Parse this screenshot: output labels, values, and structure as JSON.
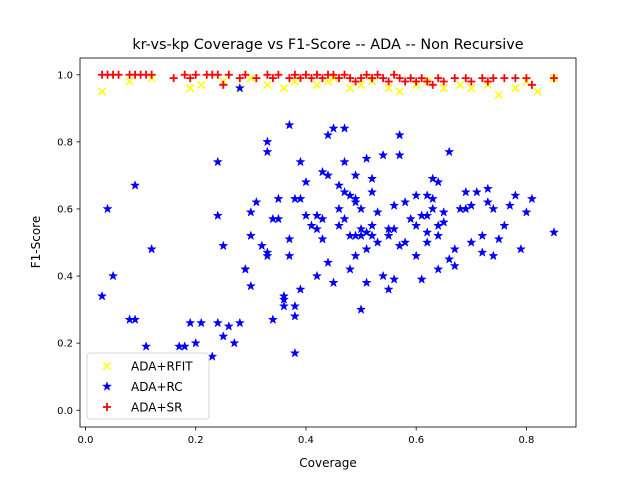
{
  "chart_data": {
    "type": "scatter",
    "title": "kr-vs-kp Coverage vs F1-Score -- ADA -- Non Recursive",
    "xlabel": "Coverage",
    "ylabel": "F1-Score",
    "xlim": [
      -0.01,
      0.89
    ],
    "ylim": [
      -0.05,
      1.05
    ],
    "xticks": [
      "0.0",
      "0.2",
      "0.4",
      "0.6",
      "0.8"
    ],
    "yticks": [
      "0.0",
      "0.2",
      "0.4",
      "0.6",
      "0.8",
      "1.0"
    ],
    "grid": false,
    "legend_position": "lower-left",
    "series": [
      {
        "name": "ADA+RFIT",
        "marker": "x",
        "color": "#ffff00",
        "points": [
          [
            0.03,
            0.95
          ],
          [
            0.08,
            0.98
          ],
          [
            0.12,
            0.99
          ],
          [
            0.19,
            0.96
          ],
          [
            0.21,
            0.97
          ],
          [
            0.25,
            0.98
          ],
          [
            0.3,
            0.99
          ],
          [
            0.33,
            0.97
          ],
          [
            0.36,
            0.96
          ],
          [
            0.38,
            0.98
          ],
          [
            0.42,
            0.97
          ],
          [
            0.45,
            0.99
          ],
          [
            0.48,
            0.96
          ],
          [
            0.5,
            0.97
          ],
          [
            0.52,
            0.98
          ],
          [
            0.55,
            0.96
          ],
          [
            0.57,
            0.95
          ],
          [
            0.6,
            0.97
          ],
          [
            0.62,
            0.98
          ],
          [
            0.65,
            0.96
          ],
          [
            0.68,
            0.97
          ],
          [
            0.7,
            0.96
          ],
          [
            0.73,
            0.97
          ],
          [
            0.75,
            0.94
          ],
          [
            0.78,
            0.96
          ],
          [
            0.8,
            0.98
          ],
          [
            0.82,
            0.95
          ],
          [
            0.85,
            0.99
          ],
          [
            0.28,
            0.96
          ],
          [
            0.44,
            0.98
          ]
        ]
      },
      {
        "name": "ADA+RC",
        "marker": "star",
        "color": "#0000ff",
        "points": [
          [
            0.03,
            0.34
          ],
          [
            0.04,
            0.6
          ],
          [
            0.05,
            0.4
          ],
          [
            0.08,
            0.27
          ],
          [
            0.09,
            0.27
          ],
          [
            0.09,
            0.67
          ],
          [
            0.11,
            0.19
          ],
          [
            0.12,
            0.48
          ],
          [
            0.18,
            0.19
          ],
          [
            0.19,
            0.26
          ],
          [
            0.2,
            0.2
          ],
          [
            0.21,
            0.26
          ],
          [
            0.23,
            0.16
          ],
          [
            0.24,
            0.26
          ],
          [
            0.24,
            0.74
          ],
          [
            0.24,
            0.58
          ],
          [
            0.25,
            0.49
          ],
          [
            0.25,
            0.22
          ],
          [
            0.26,
            0.25
          ],
          [
            0.27,
            0.2
          ],
          [
            0.28,
            0.26
          ],
          [
            0.28,
            0.96
          ],
          [
            0.29,
            0.42
          ],
          [
            0.29,
            0.42
          ],
          [
            0.3,
            0.59
          ],
          [
            0.3,
            0.37
          ],
          [
            0.31,
            0.62
          ],
          [
            0.32,
            0.49
          ],
          [
            0.33,
            0.46
          ],
          [
            0.33,
            0.47
          ],
          [
            0.33,
            0.8
          ],
          [
            0.33,
            0.77
          ],
          [
            0.34,
            0.27
          ],
          [
            0.34,
            0.57
          ],
          [
            0.35,
            0.63
          ],
          [
            0.35,
            0.57
          ],
          [
            0.36,
            0.34
          ],
          [
            0.36,
            0.33
          ],
          [
            0.37,
            0.46
          ],
          [
            0.37,
            0.51
          ],
          [
            0.37,
            0.85
          ],
          [
            0.38,
            0.31
          ],
          [
            0.38,
            0.28
          ],
          [
            0.38,
            0.17
          ],
          [
            0.38,
            0.63
          ],
          [
            0.39,
            0.63
          ],
          [
            0.39,
            0.74
          ],
          [
            0.39,
            0.36
          ],
          [
            0.4,
            0.58
          ],
          [
            0.4,
            0.68
          ],
          [
            0.41,
            0.55
          ],
          [
            0.42,
            0.54
          ],
          [
            0.42,
            0.58
          ],
          [
            0.42,
            0.4
          ],
          [
            0.43,
            0.51
          ],
          [
            0.43,
            0.71
          ],
          [
            0.44,
            0.7
          ],
          [
            0.44,
            0.82
          ],
          [
            0.44,
            0.44
          ],
          [
            0.45,
            0.84
          ],
          [
            0.45,
            0.38
          ],
          [
            0.46,
            0.55
          ],
          [
            0.46,
            0.6
          ],
          [
            0.46,
            0.67
          ],
          [
            0.47,
            0.74
          ],
          [
            0.47,
            0.65
          ],
          [
            0.47,
            0.57
          ],
          [
            0.47,
            0.84
          ],
          [
            0.48,
            0.42
          ],
          [
            0.48,
            0.64
          ],
          [
            0.49,
            0.52
          ],
          [
            0.49,
            0.7
          ],
          [
            0.49,
            0.46
          ],
          [
            0.49,
            0.62
          ],
          [
            0.49,
            0.63
          ],
          [
            0.5,
            0.54
          ],
          [
            0.5,
            0.6
          ],
          [
            0.5,
            0.3
          ],
          [
            0.5,
            0.52
          ],
          [
            0.51,
            0.53
          ],
          [
            0.51,
            0.75
          ],
          [
            0.51,
            0.38
          ],
          [
            0.51,
            0.48
          ],
          [
            0.52,
            0.69
          ],
          [
            0.52,
            0.52
          ],
          [
            0.52,
            0.55
          ],
          [
            0.53,
            0.5
          ],
          [
            0.53,
            0.59
          ],
          [
            0.54,
            0.4
          ],
          [
            0.54,
            0.76
          ],
          [
            0.55,
            0.54
          ],
          [
            0.55,
            0.36
          ],
          [
            0.55,
            0.52
          ],
          [
            0.56,
            0.61
          ],
          [
            0.56,
            0.39
          ],
          [
            0.56,
            0.54
          ],
          [
            0.57,
            0.76
          ],
          [
            0.57,
            0.49
          ],
          [
            0.57,
            0.82
          ],
          [
            0.58,
            0.62
          ],
          [
            0.59,
            0.57
          ],
          [
            0.6,
            0.55
          ],
          [
            0.6,
            0.46
          ],
          [
            0.61,
            0.58
          ],
          [
            0.62,
            0.64
          ],
          [
            0.62,
            0.5
          ],
          [
            0.62,
            0.58
          ],
          [
            0.63,
            0.69
          ],
          [
            0.63,
            0.6
          ],
          [
            0.63,
            0.63
          ],
          [
            0.64,
            0.55
          ],
          [
            0.64,
            0.68
          ],
          [
            0.64,
            0.52
          ],
          [
            0.65,
            0.56
          ],
          [
            0.65,
            0.59
          ],
          [
            0.66,
            0.77
          ],
          [
            0.66,
            0.45
          ],
          [
            0.67,
            0.48
          ],
          [
            0.67,
            0.43
          ],
          [
            0.68,
            0.6
          ],
          [
            0.69,
            0.65
          ],
          [
            0.69,
            0.6
          ],
          [
            0.7,
            0.61
          ],
          [
            0.7,
            0.5
          ],
          [
            0.71,
            0.65
          ],
          [
            0.72,
            0.52
          ],
          [
            0.72,
            0.47
          ],
          [
            0.73,
            0.66
          ],
          [
            0.73,
            0.62
          ],
          [
            0.74,
            0.6
          ],
          [
            0.74,
            0.46
          ],
          [
            0.75,
            0.51
          ],
          [
            0.76,
            0.55
          ],
          [
            0.77,
            0.61
          ],
          [
            0.78,
            0.64
          ],
          [
            0.79,
            0.48
          ],
          [
            0.8,
            0.59
          ],
          [
            0.81,
            0.63
          ],
          [
            0.85,
            0.53
          ],
          [
            0.6,
            0.64
          ],
          [
            0.61,
            0.39
          ],
          [
            0.62,
            0.53
          ],
          [
            0.48,
            0.52
          ],
          [
            0.52,
            0.65
          ],
          [
            0.36,
            0.31
          ],
          [
            0.43,
            0.57
          ],
          [
            0.17,
            0.19
          ],
          [
            0.3,
            0.52
          ],
          [
            0.58,
            0.5
          ],
          [
            0.64,
            0.42
          ]
        ]
      },
      {
        "name": "ADA+SR",
        "marker": "plus",
        "color": "#ff0000",
        "points": [
          [
            0.03,
            1.0
          ],
          [
            0.04,
            1.0
          ],
          [
            0.05,
            1.0
          ],
          [
            0.06,
            1.0
          ],
          [
            0.08,
            1.0
          ],
          [
            0.09,
            1.0
          ],
          [
            0.1,
            1.0
          ],
          [
            0.11,
            1.0
          ],
          [
            0.12,
            1.0
          ],
          [
            0.16,
            0.99
          ],
          [
            0.18,
            1.0
          ],
          [
            0.19,
            0.99
          ],
          [
            0.2,
            1.0
          ],
          [
            0.22,
            1.0
          ],
          [
            0.23,
            1.0
          ],
          [
            0.24,
            1.0
          ],
          [
            0.25,
            0.97
          ],
          [
            0.26,
            1.0
          ],
          [
            0.28,
            0.99
          ],
          [
            0.29,
            1.0
          ],
          [
            0.31,
            0.99
          ],
          [
            0.33,
            1.0
          ],
          [
            0.34,
            0.99
          ],
          [
            0.35,
            1.0
          ],
          [
            0.37,
            0.99
          ],
          [
            0.38,
            1.0
          ],
          [
            0.39,
            0.99
          ],
          [
            0.4,
            1.0
          ],
          [
            0.41,
            0.99
          ],
          [
            0.42,
            1.0
          ],
          [
            0.43,
            0.99
          ],
          [
            0.44,
            1.0
          ],
          [
            0.45,
            1.0
          ],
          [
            0.46,
            0.99
          ],
          [
            0.47,
            1.0
          ],
          [
            0.48,
            0.99
          ],
          [
            0.49,
            0.98
          ],
          [
            0.5,
            0.99
          ],
          [
            0.51,
            1.0
          ],
          [
            0.52,
            0.99
          ],
          [
            0.53,
            1.0
          ],
          [
            0.54,
            0.99
          ],
          [
            0.55,
            0.98
          ],
          [
            0.56,
            1.0
          ],
          [
            0.57,
            0.99
          ],
          [
            0.58,
            0.98
          ],
          [
            0.59,
            0.99
          ],
          [
            0.6,
            0.98
          ],
          [
            0.61,
            0.99
          ],
          [
            0.62,
            0.98
          ],
          [
            0.63,
            0.97
          ],
          [
            0.64,
            0.99
          ],
          [
            0.65,
            0.98
          ],
          [
            0.67,
            0.99
          ],
          [
            0.69,
            0.99
          ],
          [
            0.7,
            0.98
          ],
          [
            0.72,
            0.99
          ],
          [
            0.73,
            0.98
          ],
          [
            0.74,
            0.99
          ],
          [
            0.76,
            0.99
          ],
          [
            0.78,
            0.99
          ],
          [
            0.8,
            0.99
          ],
          [
            0.81,
            0.97
          ],
          [
            0.85,
            0.99
          ]
        ]
      }
    ]
  }
}
